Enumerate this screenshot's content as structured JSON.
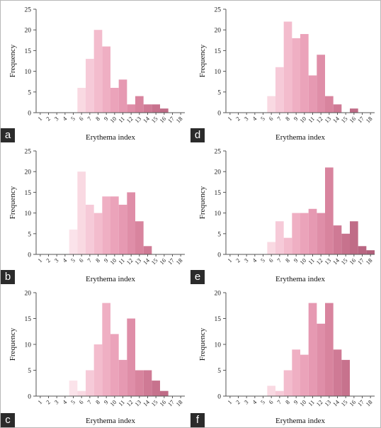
{
  "chart_data": [
    {
      "panel": "a",
      "type": "bar",
      "categories": [
        "1",
        "2",
        "3",
        "4",
        "5",
        "6",
        "7",
        "8",
        "9",
        "10",
        "11",
        "12",
        "13",
        "14",
        "15",
        "16",
        "17",
        "18"
      ],
      "values": [
        0,
        0,
        0,
        0,
        0,
        6,
        13,
        20,
        16,
        6,
        8,
        2,
        4,
        2,
        2,
        1,
        0,
        0
      ],
      "xlabel": "Erythema index",
      "ylabel": "Frequency",
      "ylim": [
        0,
        25
      ],
      "yticks": [
        0,
        5,
        10,
        15,
        20,
        25
      ]
    },
    {
      "panel": "d",
      "type": "bar",
      "categories": [
        "1",
        "2",
        "3",
        "4",
        "5",
        "6",
        "7",
        "8",
        "9",
        "10",
        "11",
        "12",
        "13",
        "14",
        "15",
        "16",
        "17",
        "18"
      ],
      "values": [
        0,
        0,
        0,
        0,
        0,
        4,
        11,
        22,
        18,
        19,
        9,
        14,
        4,
        2,
        0,
        1,
        0,
        0
      ],
      "xlabel": "Erythema index",
      "ylabel": "Frequency",
      "ylim": [
        0,
        25
      ],
      "yticks": [
        0,
        5,
        10,
        15,
        20,
        25
      ]
    },
    {
      "panel": "b",
      "type": "bar",
      "categories": [
        "1",
        "2",
        "3",
        "4",
        "5",
        "6",
        "7",
        "8",
        "9",
        "10",
        "11",
        "12",
        "13",
        "14",
        "15",
        "16",
        "17",
        "18"
      ],
      "values": [
        0,
        0,
        0,
        0,
        6,
        20,
        12,
        10,
        14,
        14,
        12,
        15,
        8,
        2,
        0,
        0,
        0,
        0
      ],
      "xlabel": "Erythema index",
      "ylabel": "Frequency",
      "ylim": [
        0,
        25
      ],
      "yticks": [
        0,
        5,
        10,
        15,
        20,
        25
      ]
    },
    {
      "panel": "e",
      "type": "bar",
      "categories": [
        "1",
        "2",
        "3",
        "4",
        "5",
        "6",
        "7",
        "8",
        "9",
        "10",
        "11",
        "12",
        "13",
        "14",
        "15",
        "16",
        "17",
        "18"
      ],
      "values": [
        0,
        0,
        0,
        0,
        0,
        3,
        8,
        4,
        10,
        10,
        11,
        10,
        21,
        7,
        5,
        8,
        2,
        1
      ],
      "xlabel": "Erythema index",
      "ylabel": "Frequency",
      "ylim": [
        0,
        25
      ],
      "yticks": [
        0,
        5,
        10,
        15,
        20,
        25
      ]
    },
    {
      "panel": "c",
      "type": "bar",
      "categories": [
        "1",
        "2",
        "3",
        "4",
        "5",
        "6",
        "7",
        "8",
        "9",
        "10",
        "11",
        "12",
        "13",
        "14",
        "15",
        "16",
        "17",
        "18"
      ],
      "values": [
        0,
        0,
        0,
        0,
        3,
        1,
        5,
        10,
        18,
        12,
        7,
        15,
        5,
        5,
        3,
        1,
        0,
        0
      ],
      "xlabel": "Erythema index",
      "ylabel": "Frequency",
      "ylim": [
        0,
        20
      ],
      "yticks": [
        0,
        5,
        10,
        15,
        20
      ]
    },
    {
      "panel": "f",
      "type": "bar",
      "categories": [
        "1",
        "2",
        "3",
        "4",
        "5",
        "6",
        "7",
        "8",
        "9",
        "10",
        "11",
        "12",
        "13",
        "14",
        "15",
        "16",
        "17",
        "18"
      ],
      "values": [
        0,
        0,
        0,
        0,
        0,
        2,
        1,
        5,
        9,
        8,
        18,
        14,
        18,
        9,
        7,
        0,
        0,
        0
      ],
      "xlabel": "Erythema index",
      "ylabel": "Frequency",
      "ylim": [
        0,
        20
      ],
      "yticks": [
        0,
        5,
        10,
        15,
        20
      ]
    }
  ],
  "bar_colors": [
    "#fbeef2",
    "#fbeef2",
    "#fbeef2",
    "#fbeef2",
    "#fbe3ea",
    "#f9d9e2",
    "#f6cad8",
    "#f3bccd",
    "#efafc3",
    "#eba3ba",
    "#e699b2",
    "#df8ea8",
    "#d8849e",
    "#cf7a95",
    "#c7728d",
    "#c06c87",
    "#b96682",
    "#b2607c"
  ]
}
